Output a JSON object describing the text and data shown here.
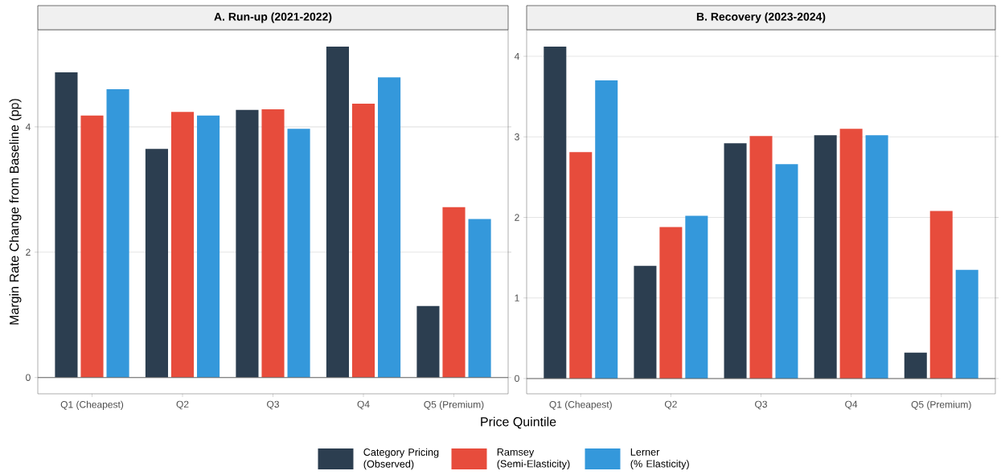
{
  "chart_data": [
    {
      "type": "bar",
      "title": "A. Run-up (2021-2022)",
      "xlabel": "Price Quintile",
      "ylabel": "Margin Rate Change from Baseline (pp)",
      "categories": [
        "Q1 (Cheapest)",
        "Q2",
        "Q3",
        "Q4",
        "Q5 (Premium)"
      ],
      "series": [
        {
          "name": "Category Pricing\n(Observed)",
          "color": "#2c3e50",
          "values": [
            4.87,
            3.65,
            4.27,
            5.28,
            1.14
          ]
        },
        {
          "name": "Ramsey\n(Semi-Elasticity)",
          "color": "#e74c3c",
          "values": [
            4.18,
            4.24,
            4.28,
            4.37,
            2.72
          ]
        },
        {
          "name": "Lerner\n(% Elasticity)",
          "color": "#3498db",
          "values": [
            4.6,
            4.18,
            3.97,
            4.79,
            2.53
          ]
        }
      ],
      "ylim": [
        -0.26,
        5.55
      ],
      "yticks": [
        0,
        2,
        4
      ],
      "grid": "y",
      "legend": "bottom",
      "ref_lines": [
        {
          "axis": "y",
          "value": 0,
          "color": "#666666"
        }
      ]
    },
    {
      "type": "bar",
      "title": "B. Recovery (2023-2024)",
      "categories": [
        "Q1 (Cheapest)",
        "Q2",
        "Q3",
        "Q4",
        "Q5 (Premium)"
      ],
      "series": [
        {
          "color": "#2c3e50",
          "values": [
            4.12,
            1.4,
            2.92,
            3.02,
            0.32
          ]
        },
        {
          "color": "#e74c3c",
          "values": [
            2.81,
            1.88,
            3.01,
            3.1,
            2.08
          ]
        },
        {
          "color": "#3498db",
          "values": [
            3.7,
            2.02,
            2.66,
            3.02,
            1.35
          ]
        }
      ],
      "ylim": [
        -0.19,
        4.33
      ],
      "yticks": [
        0,
        1,
        2,
        3,
        4
      ],
      "grid": "y",
      "ref_lines": [
        {
          "axis": "y",
          "value": 0,
          "color": "#666666"
        }
      ]
    }
  ]
}
